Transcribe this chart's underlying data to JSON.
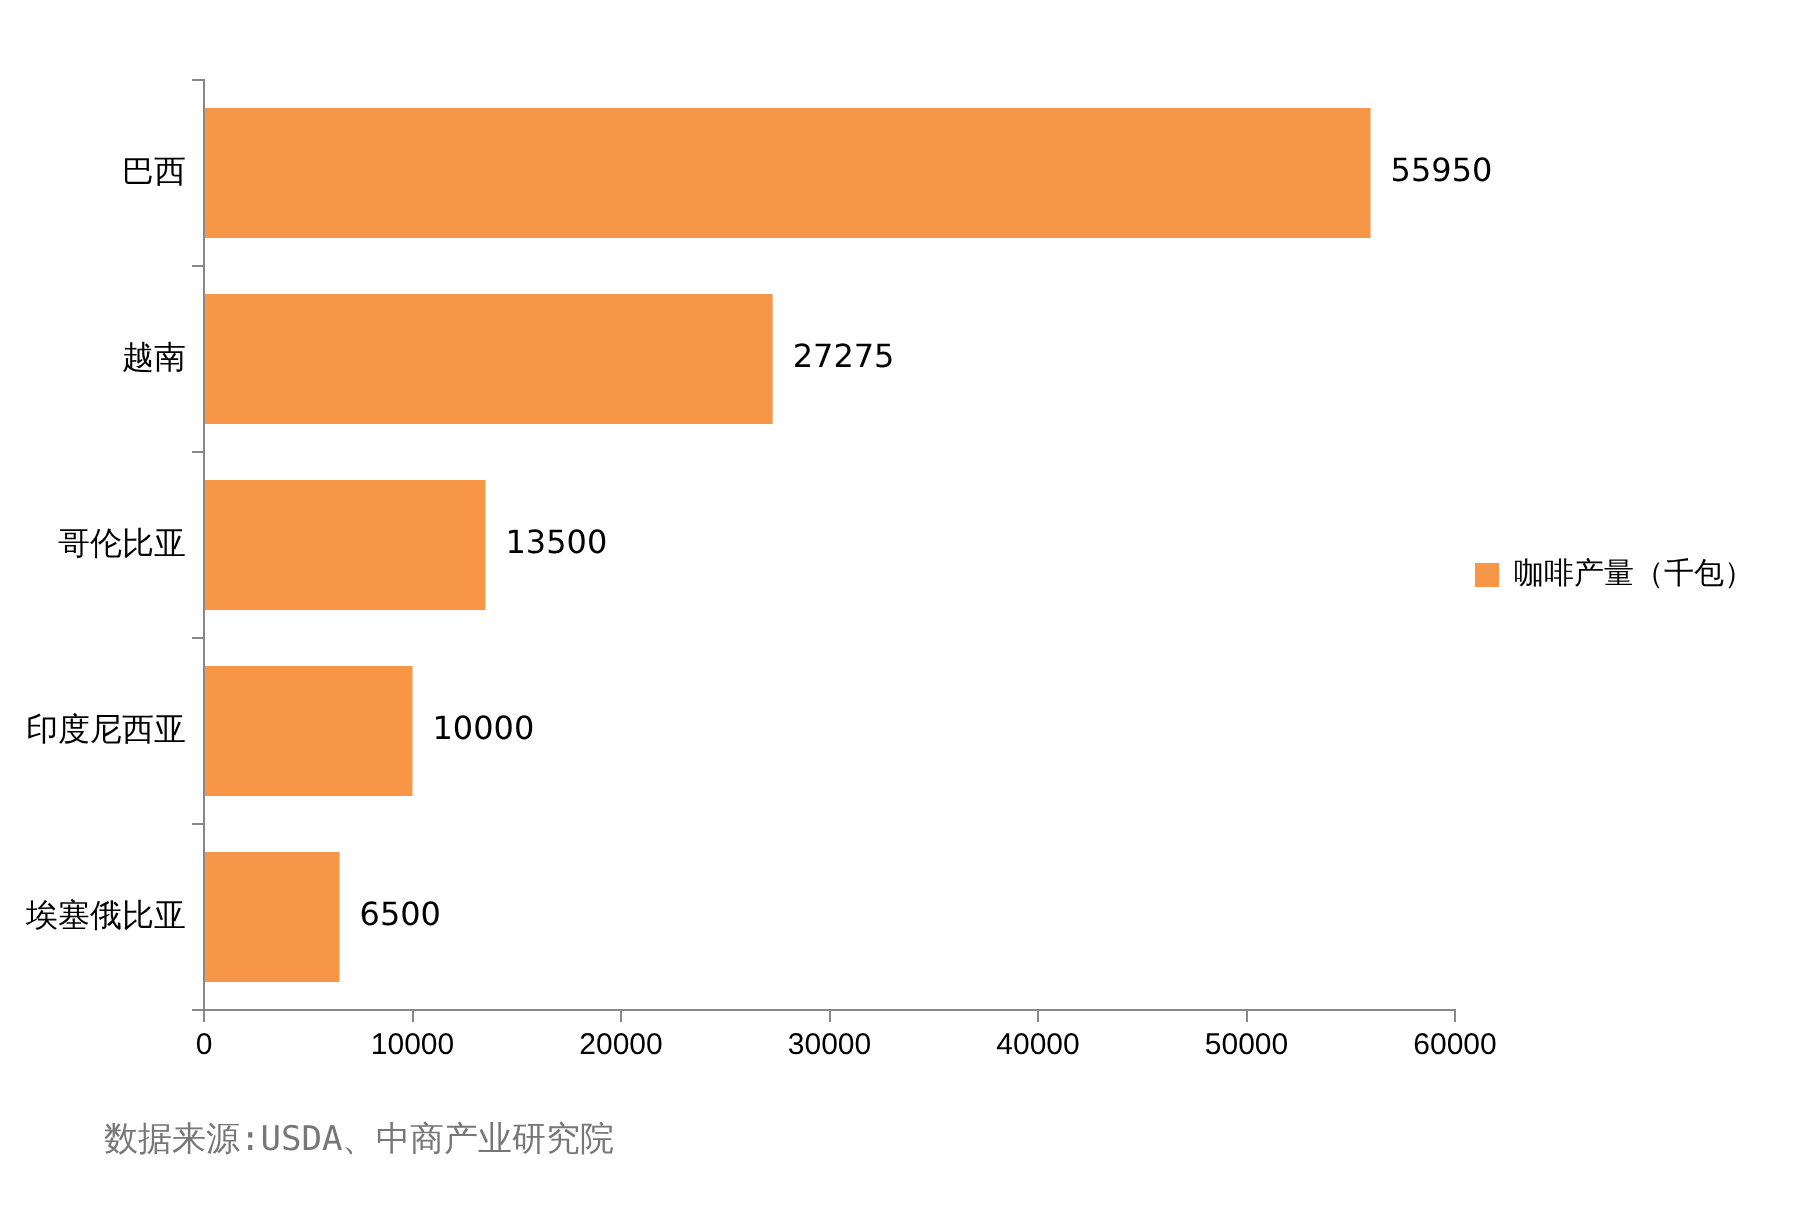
{
  "chart_data": {
    "type": "bar",
    "orientation": "horizontal",
    "categories": [
      "巴西",
      "越南",
      "哥伦比亚",
      "印度尼西亚",
      "埃塞俄比亚"
    ],
    "series": [
      {
        "name": "咖啡产量（千包）",
        "color": "#f79646",
        "values": [
          55950,
          27275,
          13500,
          10000,
          6500
        ]
      }
    ],
    "xlim": [
      0,
      60000
    ],
    "xticks": [
      0,
      10000,
      20000,
      30000,
      40000,
      50000,
      60000
    ],
    "grid": false,
    "legend": "right",
    "data_labels": true,
    "annotations": [
      "数据来源:USDA、中商产业研究院"
    ]
  }
}
